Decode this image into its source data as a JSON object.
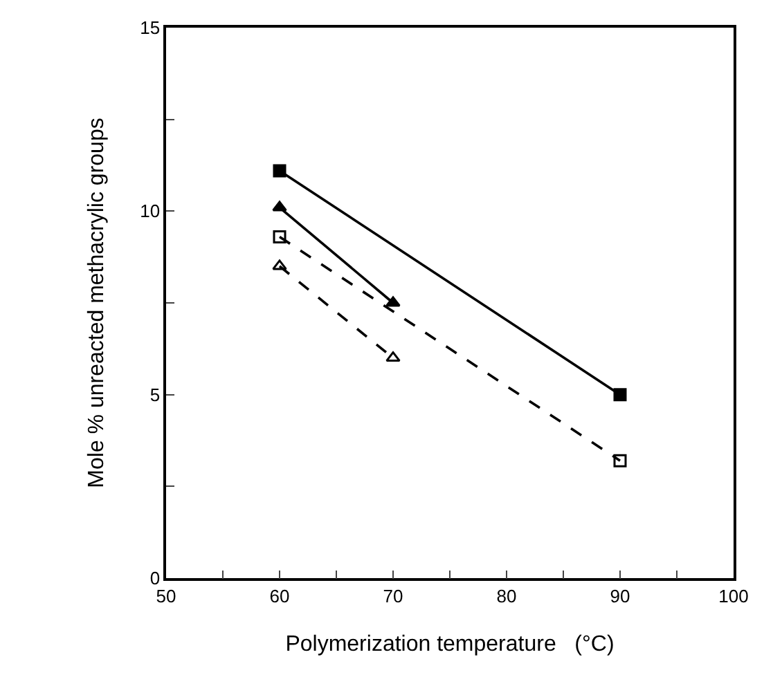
{
  "chart_data": {
    "type": "line",
    "xlabel": "Polymerization temperature   (°C)",
    "ylabel": "Mole % unreacted methacrylic groups",
    "xlim": [
      50,
      100
    ],
    "xticks": [
      50,
      {
        "value": 55,
        "label": null
      },
      60,
      {
        "value": 65,
        "label": null
      },
      70,
      {
        "value": 75,
        "label": null
      },
      80,
      {
        "value": 85,
        "label": null
      },
      90,
      {
        "value": 95,
        "label": null
      },
      100
    ],
    "ylim": [
      0,
      15
    ],
    "yticks": [
      0,
      {
        "value": 2.5,
        "label": null
      },
      5,
      {
        "value": 7.5,
        "label": null
      },
      10,
      {
        "value": 12.5,
        "label": null
      },
      15
    ],
    "grid": false,
    "series": [
      {
        "color": "#000000",
        "x": [
          60,
          90
        ],
        "values": [
          11.1,
          5.0
        ],
        "marker": "square",
        "line_style": "solid"
      },
      {
        "color": "#000000",
        "x": [
          60,
          70
        ],
        "values": [
          10.1,
          7.5
        ],
        "marker": "triangle",
        "line_style": "solid"
      },
      {
        "color": "#000000",
        "x": [
          60,
          90
        ],
        "values": [
          9.3,
          3.2
        ],
        "marker": "square",
        "line_style": "dashed"
      },
      {
        "color": "#000000",
        "x": [
          60,
          70
        ],
        "values": [
          8.5,
          6.0
        ],
        "marker": "triangle",
        "line_style": "dashed"
      }
    ]
  }
}
